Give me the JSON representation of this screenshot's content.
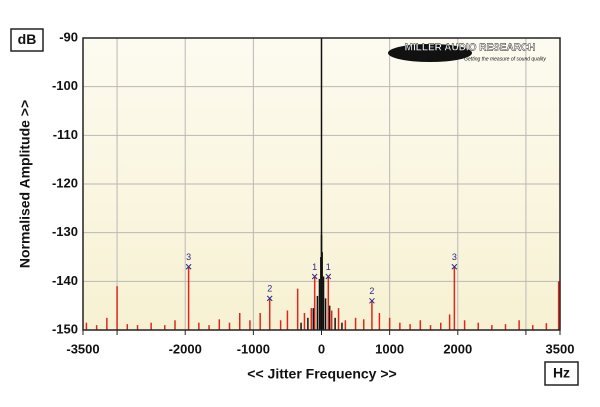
{
  "chart_data": {
    "type": "stem",
    "y_label": "Normalised Amplitude >>",
    "x_label": "<< Jitter Frequency >>",
    "y_unit": "dB",
    "x_unit": "Hz",
    "brand": "MILLER AUDIO RESEARCH",
    "tagline": "Getting the measure of sound quality",
    "xlim": [
      -3500,
      3500
    ],
    "ylim": [
      -150,
      -90
    ],
    "xticks": [
      -3500,
      {
        "value": -3000,
        "label": null
      },
      -2000,
      -1000,
      0,
      1000,
      2000,
      {
        "value": 3000,
        "label": null
      },
      3500
    ],
    "yticks": [
      -90,
      -100,
      -110,
      -120,
      -130,
      -140,
      -150
    ],
    "grid": true,
    "series": [
      {
        "color": "#e0261c",
        "x": [
          -3450,
          -3300,
          -3150,
          -3000,
          -2850,
          -2700,
          -2500,
          -2300,
          -2150,
          -1950,
          -1800,
          -1650,
          -1500,
          -1350,
          -1200,
          -1050,
          -900,
          -760,
          -600,
          -500,
          -350,
          -250,
          -150,
          -100,
          100,
          150,
          250,
          350,
          500,
          620,
          740,
          850,
          1000,
          1150,
          1300,
          1450,
          1600,
          1750,
          1880,
          1950,
          2100,
          2300,
          2500,
          2700,
          2900,
          3100,
          3300,
          3480
        ],
        "values": [
          -148.5,
          -149,
          -147.5,
          -141,
          -148.8,
          -149,
          -148.5,
          -149,
          -148,
          -137,
          -148.5,
          -149,
          -147.8,
          -148.5,
          -146.5,
          -148,
          -146.5,
          -143.5,
          -148,
          -146,
          -141.5,
          -146.5,
          -145.5,
          -139,
          -139,
          -146,
          -145.5,
          -148,
          -147.5,
          -147.8,
          -144,
          -146.5,
          -147.5,
          -148.5,
          -148.8,
          -148,
          -149,
          -148.5,
          -146.8,
          -137,
          -148,
          -148.5,
          -149,
          -148.8,
          -148,
          -149,
          -148.6,
          -140
        ]
      },
      {
        "color": "#111111",
        "x": [
          -300,
          -200,
          -120,
          -60,
          -30,
          -10,
          0,
          10,
          30,
          60,
          120,
          200,
          300
        ],
        "values": [
          -148.5,
          -147.5,
          -145.5,
          -143,
          -139.5,
          -135,
          -130.5,
          -134,
          -139,
          -143.5,
          -145,
          -147.5,
          -148.5
        ]
      }
    ],
    "annotations": [
      {
        "x": -1950,
        "y": -137,
        "label": "3"
      },
      {
        "x": -760,
        "y": -143.5,
        "label": "2"
      },
      {
        "x": -100,
        "y": -139,
        "label": "1"
      },
      {
        "x": 100,
        "y": -139,
        "label": "1"
      },
      {
        "x": 740,
        "y": -144,
        "label": "2"
      },
      {
        "x": 1950,
        "y": -137,
        "label": "3"
      }
    ]
  }
}
